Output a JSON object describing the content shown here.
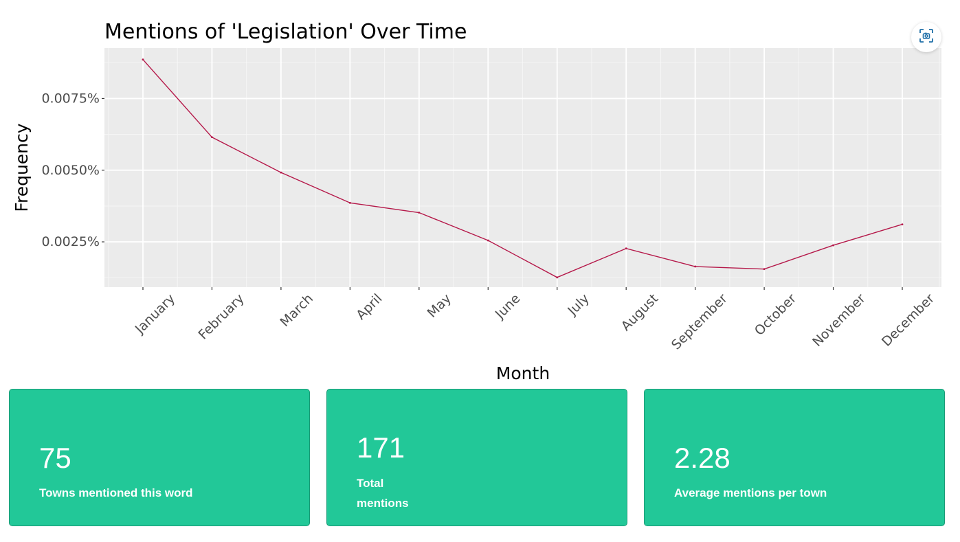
{
  "chart_data": {
    "type": "line",
    "title": "Mentions of 'Legislation' Over Time",
    "xlabel": "Month",
    "ylabel": "Frequency",
    "categories": [
      "January",
      "February",
      "March",
      "April",
      "May",
      "June",
      "July",
      "August",
      "September",
      "October",
      "November",
      "December"
    ],
    "series": [
      {
        "values": [
          0.00886,
          0.00615,
          0.00492,
          0.00386,
          0.00352,
          0.00255,
          0.00126,
          0.00227,
          0.00164,
          0.00155,
          0.00238,
          0.00311
        ]
      }
    ],
    "y_ticks": [
      0.0025,
      0.005,
      0.0075
    ],
    "y_tick_labels": [
      "0.0025%",
      "0.0050%",
      "0.0075%"
    ],
    "ylim": [
      0.00092,
      0.00926
    ],
    "grid": true,
    "line_color": "#b5194a",
    "panel_color": "#ebebeb"
  },
  "toolbar": {
    "screenshot_icon": "screenshot-icon"
  },
  "cards": [
    {
      "value": "75",
      "label_lines": [
        "Towns mentioned this word"
      ]
    },
    {
      "value": "171",
      "label_lines": [
        "Total",
        "mentions"
      ]
    },
    {
      "value": "2.28",
      "label_lines": [
        "Average mentions per town"
      ]
    }
  ],
  "colors": {
    "card_bg": "#22c898",
    "card_text": "#ffffff"
  }
}
